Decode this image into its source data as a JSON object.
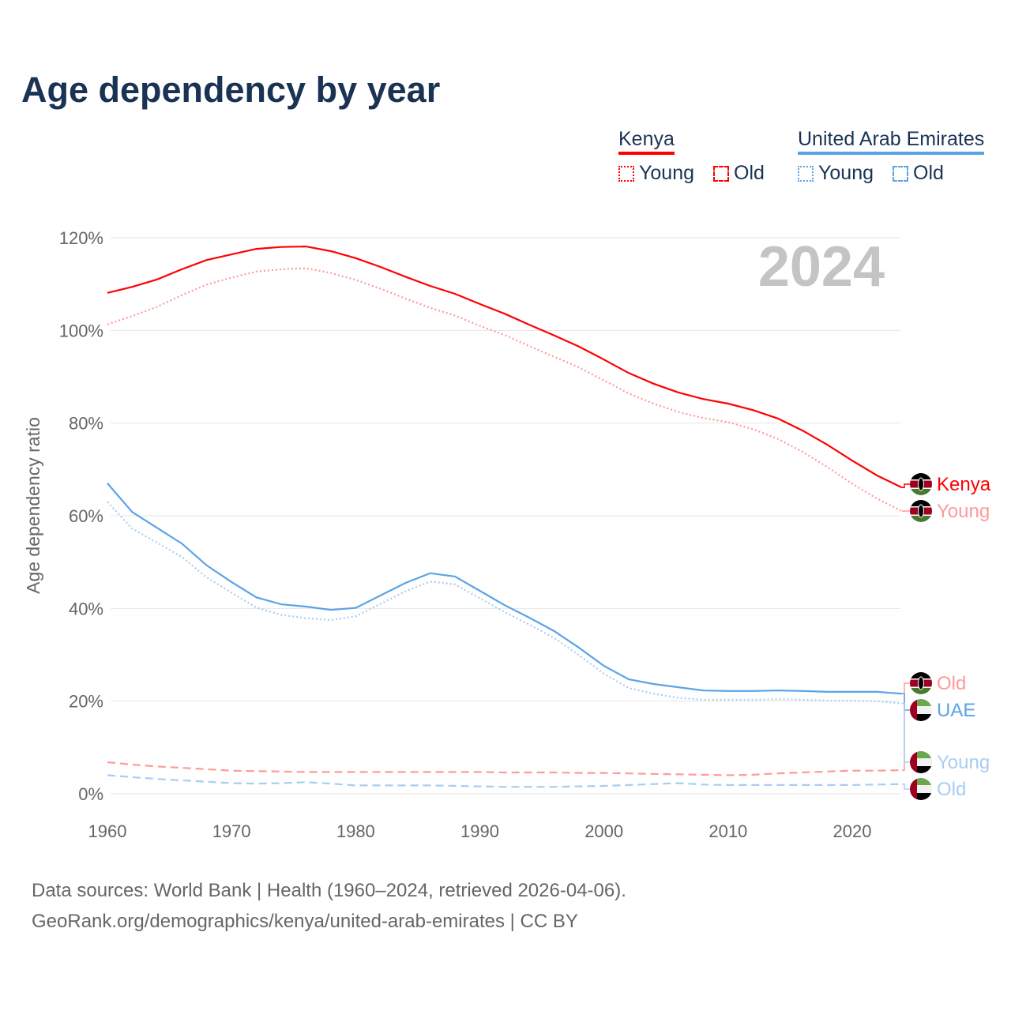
{
  "title": "Age dependency by year",
  "legend": {
    "kenya": {
      "name": "Kenya",
      "color": "#ff0000",
      "young": "Young",
      "old": "Old"
    },
    "uae": {
      "name": "United Arab Emirates",
      "color": "#5ba3e8",
      "young": "Young",
      "old": "Old"
    }
  },
  "source": {
    "line1": "Data sources: World Bank | Health (1960–2024, retrieved 2026-04-06).",
    "line2": "GeoRank.org/demographics/kenya/united-arab-emirates | CC BY"
  },
  "chart_data": {
    "type": "line",
    "title": "Age dependency by year",
    "ylabel": "Age dependency ratio",
    "xlabel": "",
    "year_watermark": "2024",
    "xlim": [
      1960,
      2024
    ],
    "ylim": [
      0,
      120
    ],
    "x_ticks": [
      "1960",
      "1970",
      "1980",
      "1990",
      "2000",
      "2010",
      "2020"
    ],
    "y_ticks": [
      "0%",
      "20%",
      "40%",
      "60%",
      "80%",
      "100%",
      "120%"
    ],
    "x": [
      1960,
      1962,
      1964,
      1966,
      1968,
      1970,
      1972,
      1974,
      1976,
      1978,
      1980,
      1982,
      1984,
      1986,
      1988,
      1990,
      1992,
      1994,
      1996,
      1998,
      2000,
      2002,
      2004,
      2006,
      2008,
      2010,
      2012,
      2014,
      2016,
      2018,
      2020,
      2022,
      2024
    ],
    "series": [
      {
        "name": "Kenya",
        "label": "Kenya",
        "color": "#ff0000",
        "dash": "",
        "values": [
          108.1,
          109.4,
          111.0,
          113.2,
          115.2,
          116.4,
          117.6,
          118.0,
          118.1,
          117.1,
          115.6,
          113.7,
          111.6,
          109.6,
          107.9,
          105.7,
          103.6,
          101.2,
          98.9,
          96.5,
          93.7,
          90.8,
          88.5,
          86.6,
          85.2,
          84.2,
          82.8,
          81.0,
          78.4,
          75.3,
          71.9,
          68.7,
          66.1
        ]
      },
      {
        "name": "Kenya Young",
        "label": "Young",
        "color": "#ff9a9a",
        "dash": "2 3",
        "values": [
          101.3,
          103.1,
          105.1,
          107.6,
          109.9,
          111.4,
          112.7,
          113.2,
          113.4,
          112.4,
          110.9,
          109.0,
          106.9,
          104.9,
          103.2,
          101.0,
          99.0,
          96.6,
          94.3,
          92.0,
          89.2,
          86.4,
          84.2,
          82.4,
          81.1,
          80.2,
          78.7,
          76.6,
          73.8,
          70.5,
          66.9,
          63.7,
          61.0
        ]
      },
      {
        "name": "Kenya Old",
        "label": "Old",
        "color": "#ff9a9a",
        "dash": "10 6",
        "values": [
          6.8,
          6.3,
          5.9,
          5.6,
          5.3,
          5.0,
          4.9,
          4.8,
          4.7,
          4.7,
          4.7,
          4.7,
          4.7,
          4.7,
          4.7,
          4.7,
          4.6,
          4.6,
          4.6,
          4.5,
          4.5,
          4.4,
          4.3,
          4.2,
          4.1,
          4.0,
          4.1,
          4.4,
          4.6,
          4.8,
          5.0,
          5.0,
          5.1
        ]
      },
      {
        "name": "UAE",
        "label": "UAE",
        "color": "#5ba3e8",
        "dash": "",
        "values": [
          67.0,
          60.8,
          57.4,
          54.0,
          49.3,
          45.7,
          42.4,
          40.9,
          40.4,
          39.7,
          40.1,
          42.8,
          45.5,
          47.6,
          46.9,
          43.8,
          40.7,
          38.0,
          35.1,
          31.5,
          27.6,
          24.7,
          23.7,
          23.0,
          22.3,
          22.2,
          22.2,
          22.3,
          22.2,
          22.0,
          22.0,
          22.0,
          21.6
        ]
      },
      {
        "name": "UAE Young",
        "label": "Young",
        "color": "#a8cdf2",
        "dash": "2 3",
        "values": [
          63.0,
          57.2,
          54.2,
          51.1,
          46.7,
          43.4,
          40.2,
          38.6,
          37.9,
          37.5,
          38.3,
          41.0,
          43.7,
          45.8,
          45.2,
          42.2,
          39.2,
          36.5,
          33.6,
          29.9,
          25.9,
          22.8,
          21.6,
          20.7,
          20.3,
          20.3,
          20.3,
          20.4,
          20.3,
          20.1,
          20.1,
          20.0,
          19.5
        ]
      },
      {
        "name": "UAE Old",
        "label": "Old",
        "color": "#a8cdf2",
        "dash": "10 6",
        "values": [
          4.0,
          3.6,
          3.2,
          2.9,
          2.6,
          2.3,
          2.2,
          2.3,
          2.5,
          2.2,
          1.8,
          1.8,
          1.8,
          1.8,
          1.7,
          1.6,
          1.5,
          1.5,
          1.5,
          1.6,
          1.7,
          1.9,
          2.1,
          2.3,
          2.0,
          1.9,
          1.9,
          1.9,
          1.9,
          1.9,
          1.9,
          2.0,
          2.1
        ]
      }
    ]
  }
}
